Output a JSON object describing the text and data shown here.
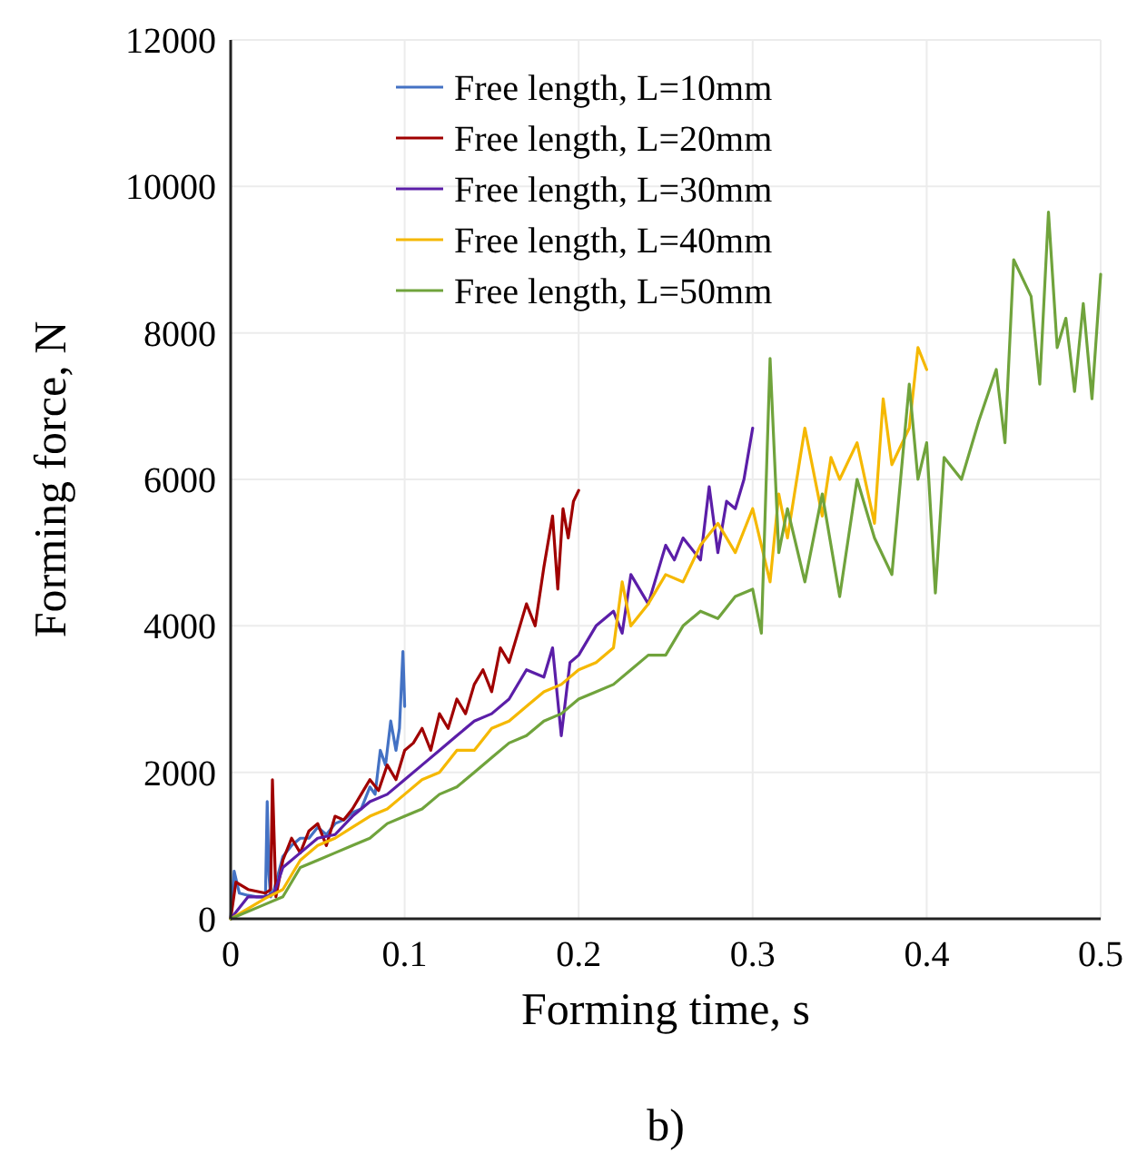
{
  "chart_data": {
    "type": "line",
    "xlabel": "Forming time, s",
    "ylabel": "Forming force, N",
    "annotations": [
      "b)"
    ],
    "xlim": [
      0,
      0.5
    ],
    "xticks": [
      0,
      0.1,
      0.2,
      0.3,
      0.4,
      0.5
    ],
    "ylim": [
      0,
      12000
    ],
    "yticks": [
      0,
      2000,
      4000,
      6000,
      8000,
      10000,
      12000
    ],
    "grid": true,
    "legend": "top",
    "marker": "none",
    "line_style": "solid",
    "series": [
      {
        "name": "Free length, L=10mm",
        "color": "#4472c4",
        "x": [
          0,
          0.002,
          0.005,
          0.01,
          0.015,
          0.02,
          0.021,
          0.022,
          0.023,
          0.025,
          0.03,
          0.035,
          0.04,
          0.045,
          0.05,
          0.055,
          0.06,
          0.065,
          0.07,
          0.075,
          0.08,
          0.083,
          0.086,
          0.089,
          0.092,
          0.095,
          0.097,
          0.099,
          0.1
        ],
        "values": [
          0,
          650,
          350,
          320,
          300,
          300,
          1600,
          600,
          300,
          400,
          850,
          1000,
          1100,
          1100,
          1250,
          1150,
          1300,
          1350,
          1450,
          1500,
          1800,
          1700,
          2300,
          2100,
          2700,
          2300,
          2600,
          3650,
          2900
        ]
      },
      {
        "name": "Free length, L=20mm",
        "color": "#a00000",
        "x": [
          0,
          0.003,
          0.01,
          0.02,
          0.023,
          0.024,
          0.026,
          0.03,
          0.035,
          0.04,
          0.045,
          0.05,
          0.055,
          0.06,
          0.065,
          0.07,
          0.075,
          0.08,
          0.085,
          0.09,
          0.095,
          0.1,
          0.105,
          0.11,
          0.115,
          0.12,
          0.125,
          0.13,
          0.135,
          0.14,
          0.145,
          0.15,
          0.155,
          0.16,
          0.165,
          0.17,
          0.175,
          0.18,
          0.185,
          0.188,
          0.191,
          0.194,
          0.197,
          0.2
        ],
        "values": [
          0,
          500,
          400,
          350,
          400,
          1900,
          300,
          800,
          1100,
          900,
          1200,
          1300,
          1000,
          1400,
          1350,
          1500,
          1700,
          1900,
          1750,
          2100,
          1900,
          2300,
          2400,
          2600,
          2300,
          2800,
          2600,
          3000,
          2800,
          3200,
          3400,
          3100,
          3700,
          3500,
          3900,
          4300,
          4000,
          4800,
          5500,
          4500,
          5600,
          5200,
          5700,
          5850
        ]
      },
      {
        "name": "Free length, L=30mm",
        "color": "#5b1ea8",
        "x": [
          0,
          0.01,
          0.02,
          0.025,
          0.03,
          0.04,
          0.05,
          0.06,
          0.07,
          0.08,
          0.09,
          0.1,
          0.11,
          0.12,
          0.13,
          0.14,
          0.15,
          0.16,
          0.17,
          0.18,
          0.185,
          0.19,
          0.195,
          0.2,
          0.21,
          0.22,
          0.225,
          0.23,
          0.24,
          0.25,
          0.255,
          0.26,
          0.27,
          0.275,
          0.28,
          0.285,
          0.29,
          0.295,
          0.3
        ],
        "values": [
          0,
          300,
          300,
          350,
          700,
          900,
          1100,
          1150,
          1400,
          1600,
          1700,
          1900,
          2100,
          2300,
          2500,
          2700,
          2800,
          3000,
          3400,
          3300,
          3700,
          2500,
          3500,
          3600,
          4000,
          4200,
          3900,
          4700,
          4300,
          5100,
          4900,
          5200,
          4900,
          5900,
          5000,
          5700,
          5600,
          6000,
          6700
        ]
      },
      {
        "name": "Free length, L=40mm",
        "color": "#f5b800",
        "x": [
          0,
          0.02,
          0.03,
          0.04,
          0.05,
          0.06,
          0.07,
          0.08,
          0.09,
          0.1,
          0.11,
          0.12,
          0.13,
          0.14,
          0.15,
          0.16,
          0.17,
          0.18,
          0.19,
          0.2,
          0.21,
          0.22,
          0.225,
          0.23,
          0.24,
          0.25,
          0.26,
          0.27,
          0.28,
          0.29,
          0.3,
          0.31,
          0.315,
          0.32,
          0.33,
          0.34,
          0.345,
          0.35,
          0.36,
          0.37,
          0.375,
          0.38,
          0.39,
          0.395,
          0.4
        ],
        "values": [
          0,
          280,
          400,
          800,
          1000,
          1100,
          1250,
          1400,
          1500,
          1700,
          1900,
          2000,
          2300,
          2300,
          2600,
          2700,
          2900,
          3100,
          3200,
          3400,
          3500,
          3700,
          4600,
          4000,
          4300,
          4700,
          4600,
          5100,
          5400,
          5000,
          5600,
          4600,
          5800,
          5200,
          6700,
          5500,
          6300,
          6000,
          6500,
          5400,
          7100,
          6200,
          6700,
          7800,
          7500
        ]
      },
      {
        "name": "Free length, L=50mm",
        "color": "#70a33c",
        "x": [
          0,
          0.02,
          0.03,
          0.04,
          0.05,
          0.06,
          0.07,
          0.08,
          0.09,
          0.1,
          0.11,
          0.12,
          0.13,
          0.14,
          0.15,
          0.16,
          0.17,
          0.18,
          0.19,
          0.2,
          0.21,
          0.22,
          0.23,
          0.24,
          0.25,
          0.26,
          0.27,
          0.28,
          0.29,
          0.3,
          0.305,
          0.31,
          0.315,
          0.32,
          0.33,
          0.34,
          0.35,
          0.36,
          0.37,
          0.38,
          0.39,
          0.395,
          0.4,
          0.405,
          0.41,
          0.42,
          0.43,
          0.44,
          0.445,
          0.45,
          0.46,
          0.465,
          0.47,
          0.475,
          0.48,
          0.485,
          0.49,
          0.495,
          0.5
        ],
        "values": [
          0,
          200,
          300,
          700,
          800,
          900,
          1000,
          1100,
          1300,
          1400,
          1500,
          1700,
          1800,
          2000,
          2200,
          2400,
          2500,
          2700,
          2800,
          3000,
          3100,
          3200,
          3400,
          3600,
          3600,
          4000,
          4200,
          4100,
          4400,
          4500,
          3900,
          7650,
          5000,
          5600,
          4600,
          5800,
          4400,
          6000,
          5200,
          4700,
          7300,
          6000,
          6500,
          4450,
          6300,
          6000,
          6800,
          7500,
          6500,
          9000,
          8500,
          7300,
          9650,
          7800,
          8200,
          7200,
          8400,
          7100,
          8800
        ]
      }
    ]
  }
}
